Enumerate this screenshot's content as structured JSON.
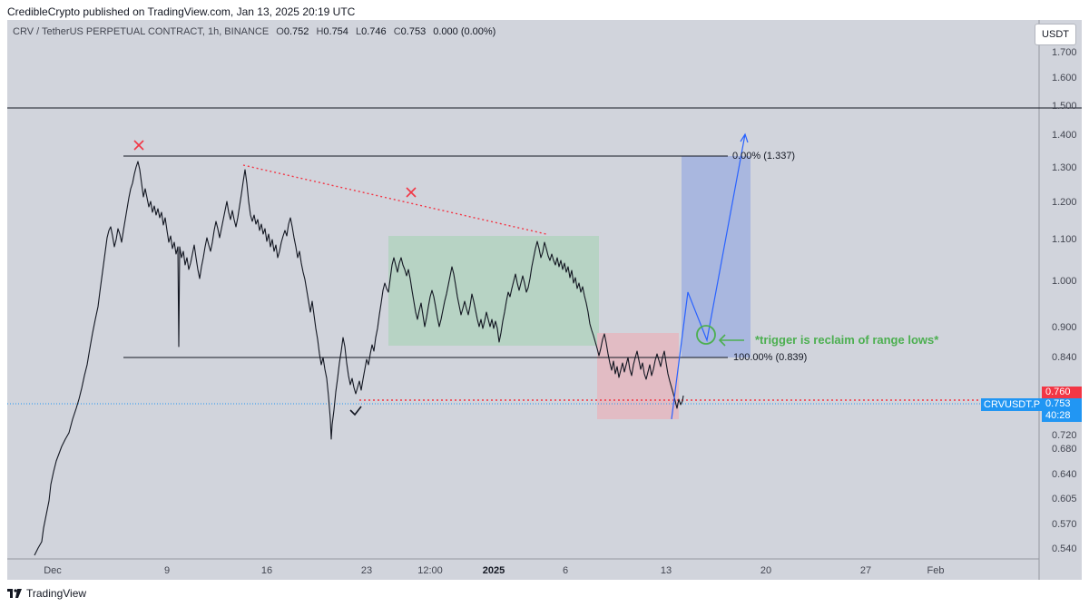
{
  "caption": "CredibleCrypto published on TradingView.com, Jan 13, 2025 20:19 UTC",
  "symbol": {
    "name": "CRV / TetherUS PERPETUAL CONTRACT, 1h, BINANCE",
    "o_label": "O",
    "o_value": "0.752",
    "h_label": "H",
    "h_value": "0.754",
    "l_label": "L",
    "l_value": "0.746",
    "c_label": "C",
    "c_value": "0.753",
    "change": "0.000 (0.00%)"
  },
  "currency": "USDT",
  "y_axis": [
    "1.700",
    "1.600",
    "1.500",
    "1.400",
    "1.300",
    "1.200",
    "1.100",
    "1.000",
    "0.900",
    "0.840",
    "0.760",
    "0.720",
    "0.680",
    "0.640",
    "0.605",
    "0.570",
    "0.540"
  ],
  "x_axis": [
    "Dec",
    "9",
    "16",
    "23",
    "12:00",
    "2025",
    "6",
    "13",
    "20",
    "27",
    "Feb"
  ],
  "price_tags": {
    "high_price": "0.760",
    "last_price": "0.753",
    "countdown": "40:28",
    "ticker": "CRVUSDT.P"
  },
  "annotations": {
    "fib_top": "0.00% (1.337)",
    "fib_bottom": "100.00% (0.839)",
    "trigger_note": "*trigger is reclaim of range lows*"
  },
  "colors": {
    "background": "#d1d4dc",
    "range_box": "#b7d3c4",
    "breakdown_box": "#e2bcc4",
    "target_box": "#a9b7df",
    "projection": "#2962ff",
    "trigger": "#4caf50",
    "red_marks": "#f23645"
  },
  "footer": {
    "brand": "TradingView"
  }
}
